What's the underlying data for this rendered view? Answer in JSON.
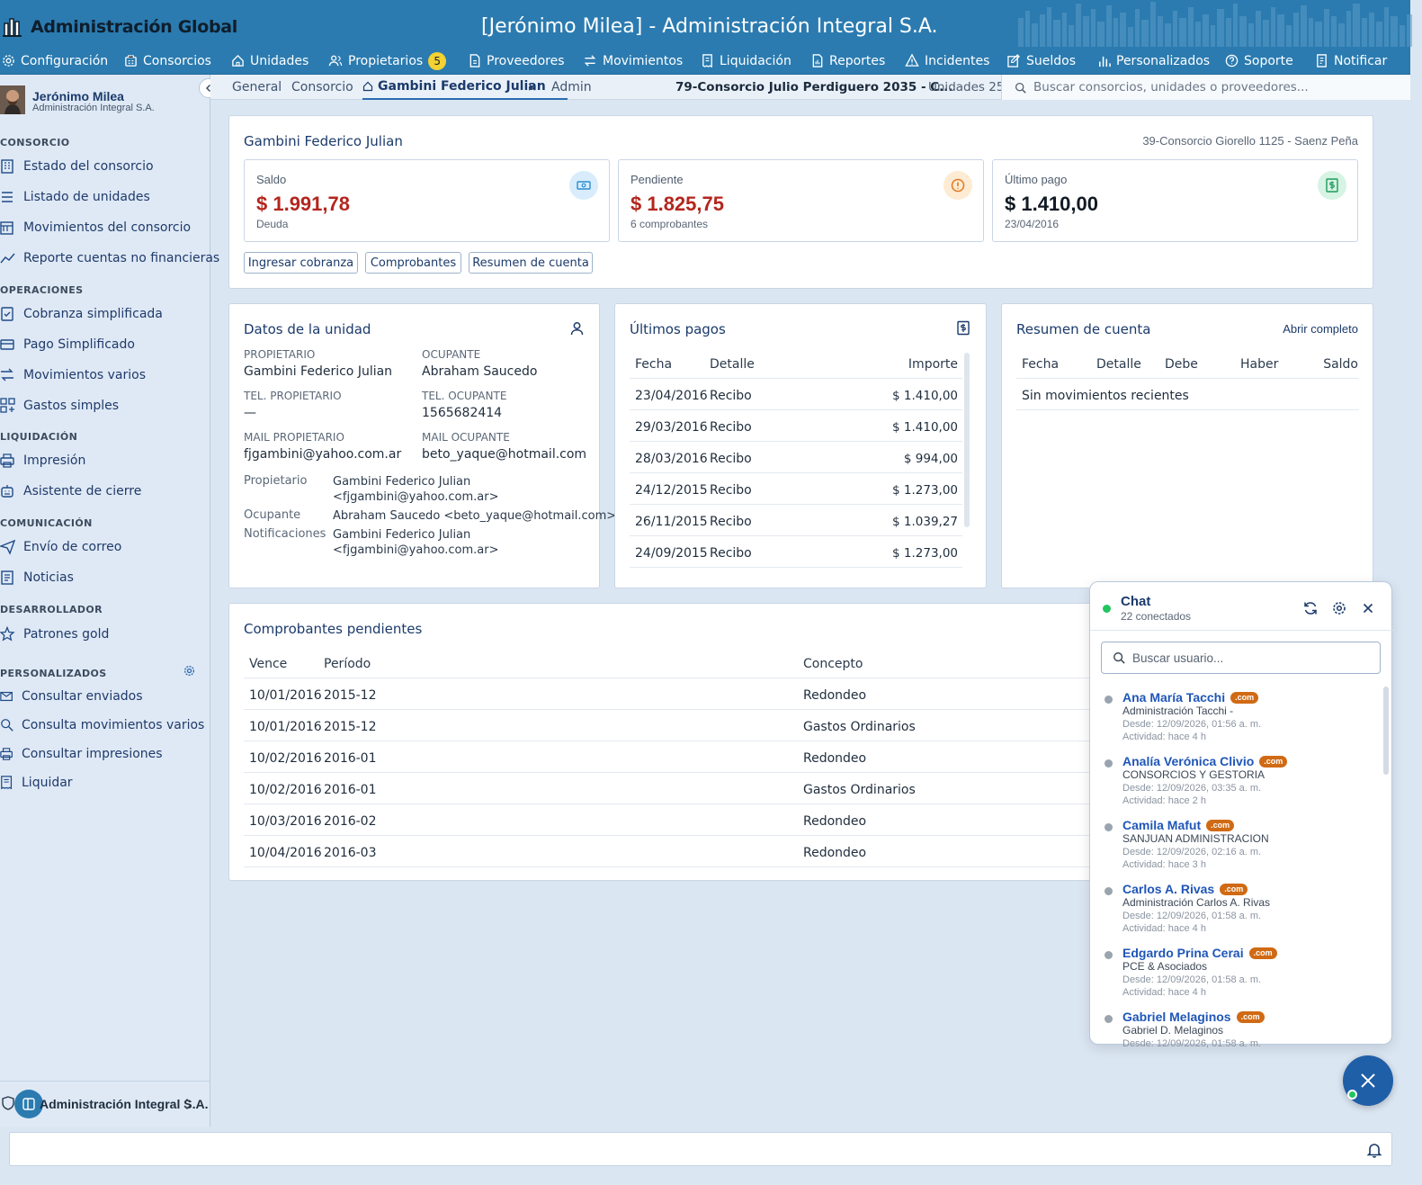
{
  "app": {
    "brand": "Administración Global",
    "window_title": "[Jerónimo Milea] - Administración Integral S.A."
  },
  "nav": [
    {
      "label": "Configuración",
      "icon": "gear-icon"
    },
    {
      "label": "Consorcios",
      "icon": "building-icon"
    },
    {
      "label": "Unidades",
      "icon": "home-icon"
    },
    {
      "label": "Propietarios",
      "icon": "users-icon",
      "badge": "5"
    },
    {
      "label": "Proveedores",
      "icon": "file-icon"
    },
    {
      "label": "Movimientos",
      "icon": "swap-icon"
    },
    {
      "label": "Liquidación",
      "icon": "receipt-icon"
    },
    {
      "label": "Reportes",
      "icon": "report-icon"
    },
    {
      "label": "Incidentes",
      "icon": "alert-icon"
    },
    {
      "label": "Sueldos",
      "icon": "edit-icon"
    },
    {
      "label": "Personalizados",
      "icon": "bars-icon"
    },
    {
      "label": "Soporte",
      "icon": "help-icon"
    },
    {
      "label": "Notificar",
      "icon": "notify-icon"
    }
  ],
  "user": {
    "name": "Jerónimo Milea",
    "org": "Administración Integral S.A."
  },
  "sidebar": {
    "sections": [
      {
        "title": "CONSORCIO",
        "items": [
          "Estado del consorcio",
          "Listado de unidades",
          "Movimientos del consorcio",
          "Reporte cuentas no financieras"
        ]
      },
      {
        "title": "OPERACIONES",
        "items": [
          "Cobranza simplificada",
          "Pago Simplificado",
          "Movimientos varios",
          "Gastos simples"
        ]
      },
      {
        "title": "LIQUIDACIÓN",
        "items": [
          "Impresión",
          "Asistente de cierre"
        ]
      },
      {
        "title": "COMUNICACIÓN",
        "items": [
          "Envío de correo",
          "Noticias"
        ]
      },
      {
        "title": "DESARROLLADOR",
        "items": [
          "Patrones gold"
        ]
      },
      {
        "title": "PERSONALIZADOS",
        "items": [
          "Consultar enviados",
          "Consulta movimientos varios",
          "Consultar impresiones",
          "Liquidar"
        ]
      }
    ],
    "footer": "Administración Integral S.A."
  },
  "tabs": {
    "items": [
      "General",
      "Consorcio",
      "Gambini Federico Julian",
      "Admin"
    ],
    "close": "×",
    "context": "79-Consorcio Julio Perdiguero 2035 - C...",
    "units": "Unidades 25"
  },
  "search": {
    "placeholder": "Buscar consorcios, unidades o proveedores..."
  },
  "summary": {
    "title": "Gambini Federico Julian",
    "consorcio": "39-Consorcio Giorello 1125 - Saenz Peña",
    "stats": [
      {
        "label": "Saldo",
        "value": "$ 1.991,78",
        "sub": "Deuda",
        "color": "#b3261e"
      },
      {
        "label": "Pendiente",
        "value": "$ 1.825,75",
        "sub": "6 comprobantes",
        "color": "#b3261e"
      },
      {
        "label": "Último pago",
        "value": "$ 1.410,00",
        "sub": "23/04/2016",
        "color": "#111a24"
      }
    ],
    "buttons": [
      "Ingresar cobranza",
      "Comprobantes",
      "Resumen de cuenta"
    ]
  },
  "unit": {
    "title": "Datos de la unidad",
    "fields": [
      {
        "label": "PROPIETARIO",
        "value": "Gambini Federico Julian"
      },
      {
        "label": "OCUPANTE",
        "value": "Abraham Saucedo"
      },
      {
        "label": "TEL. PROPIETARIO",
        "value": "—"
      },
      {
        "label": "TEL. OCUPANTE",
        "value": "1565682414"
      },
      {
        "label": "MAIL PROPIETARIO",
        "value": "fjgambini@yahoo.com.ar"
      },
      {
        "label": "MAIL OCUPANTE",
        "value": "beto_yaque@hotmail.com"
      }
    ],
    "contacts": [
      {
        "label": "Propietario",
        "value": "Gambini Federico Julian <fjgambini@yahoo.com.ar>"
      },
      {
        "label": "Ocupante",
        "value": "Abraham Saucedo <beto_yaque@hotmail.com>"
      },
      {
        "label": "Notificaciones",
        "value": "Gambini Federico Julian <fjgambini@yahoo.com.ar>"
      }
    ]
  },
  "payments": {
    "title": "Últimos pagos",
    "headers": [
      "Fecha",
      "Detalle",
      "Importe"
    ],
    "rows": [
      [
        "23/04/2016",
        "Recibo",
        "$ 1.410,00"
      ],
      [
        "29/03/2016",
        "Recibo",
        "$ 1.410,00"
      ],
      [
        "28/03/2016",
        "Recibo",
        "$ 994,00"
      ],
      [
        "24/12/2015",
        "Recibo",
        "$ 1.273,00"
      ],
      [
        "26/11/2015",
        "Recibo",
        "$ 1.039,27"
      ],
      [
        "24/09/2015",
        "Recibo",
        "$ 1.273,00"
      ]
    ]
  },
  "account": {
    "title": "Resumen de cuenta",
    "link": "Abrir completo",
    "headers": [
      "Fecha",
      "Detalle",
      "Debe",
      "Haber",
      "Saldo"
    ],
    "empty": "Sin movimientos recientes"
  },
  "pending": {
    "title": "Comprobantes pendientes",
    "headers": [
      "Vence",
      "Período",
      "Concepto"
    ],
    "rows": [
      [
        "10/01/2016",
        "2015-12",
        "Redondeo"
      ],
      [
        "10/01/2016",
        "2015-12",
        "Gastos Ordinarios"
      ],
      [
        "10/02/2016",
        "2016-01",
        "Redondeo"
      ],
      [
        "10/02/2016",
        "2016-01",
        "Gastos Ordinarios"
      ],
      [
        "10/03/2016",
        "2016-02",
        "Redondeo"
      ],
      [
        "10/04/2016",
        "2016-03",
        "Redondeo"
      ]
    ]
  },
  "chat": {
    "title": "Chat",
    "connected": "22 conectados",
    "search_placeholder": "Buscar usuario...",
    "users": [
      {
        "name": "Ana María Tacchi",
        "tag": ".com",
        "org": "Administración Tacchi -",
        "since": "Desde: 12/09/2026, 01:56 a. m.",
        "activity": "Actividad: hace 4 h"
      },
      {
        "name": "Analía Verónica Clivio",
        "tag": ".com",
        "org": "CONSORCIOS Y GESTORIA",
        "since": "Desde: 12/09/2026, 03:35 a. m.",
        "activity": "Actividad: hace 2 h"
      },
      {
        "name": "Camila Mafut",
        "tag": ".com",
        "org": "SANJUAN ADMINISTRACION",
        "since": "Desde: 12/09/2026, 02:16 a. m.",
        "activity": "Actividad: hace 3 h"
      },
      {
        "name": "Carlos A. Rivas",
        "tag": ".com",
        "org": "Administración Carlos A. Rivas",
        "since": "Desde: 12/09/2026, 01:58 a. m.",
        "activity": "Actividad: hace 4 h"
      },
      {
        "name": "Edgardo Prina Cerai",
        "tag": ".com",
        "org": "PCE & Asociados",
        "since": "Desde: 12/09/2026, 01:58 a. m.",
        "activity": "Actividad: hace 4 h"
      },
      {
        "name": "Gabriel Melaginos",
        "tag": ".com",
        "org": "Gabriel D. Melaginos",
        "since": "Desde: 12/09/2026, 01:58 a. m.",
        "activity": ""
      }
    ]
  },
  "colors": {
    "header": "#2b7bb0",
    "accent": "#1f56b8",
    "debt": "#b3261e",
    "online": "#22c55e",
    "tag": "#d06a14"
  }
}
